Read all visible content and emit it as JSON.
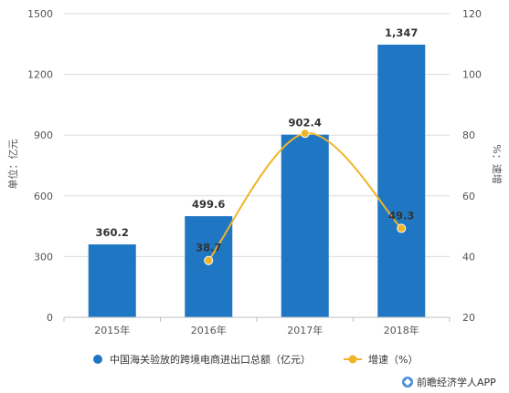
{
  "chart_data": {
    "type": "bar",
    "categories": [
      "2015年",
      "2016年",
      "2017年",
      "2018年"
    ],
    "series": [
      {
        "name": "中国海关验放的跨境电商进出口总额（亿元）",
        "type": "bar",
        "axis": "left",
        "values": [
          360.2,
          499.6,
          902.4,
          1347
        ],
        "labels": [
          "360.2",
          "499.6",
          "902.4",
          "1,347"
        ],
        "color": "#1f77c4"
      },
      {
        "name": "增速（%）",
        "type": "line",
        "axis": "right",
        "values": [
          null,
          38.7,
          80.6,
          49.3
        ],
        "labels": [
          "",
          "38.7",
          "",
          "49.3"
        ],
        "color": "#f0b428"
      }
    ],
    "ylabel": "单位：亿元",
    "y2label": "%：速增",
    "ylim": [
      0,
      1500
    ],
    "y2lim": [
      20,
      120
    ],
    "yticks": [
      "0",
      "300",
      "600",
      "900",
      "1200",
      "1500"
    ],
    "y2ticks": [
      "20",
      "40",
      "60",
      "80",
      "100",
      "120"
    ],
    "grid": true,
    "legend_position": "bottom"
  },
  "source": "前瞻经济学人APP"
}
